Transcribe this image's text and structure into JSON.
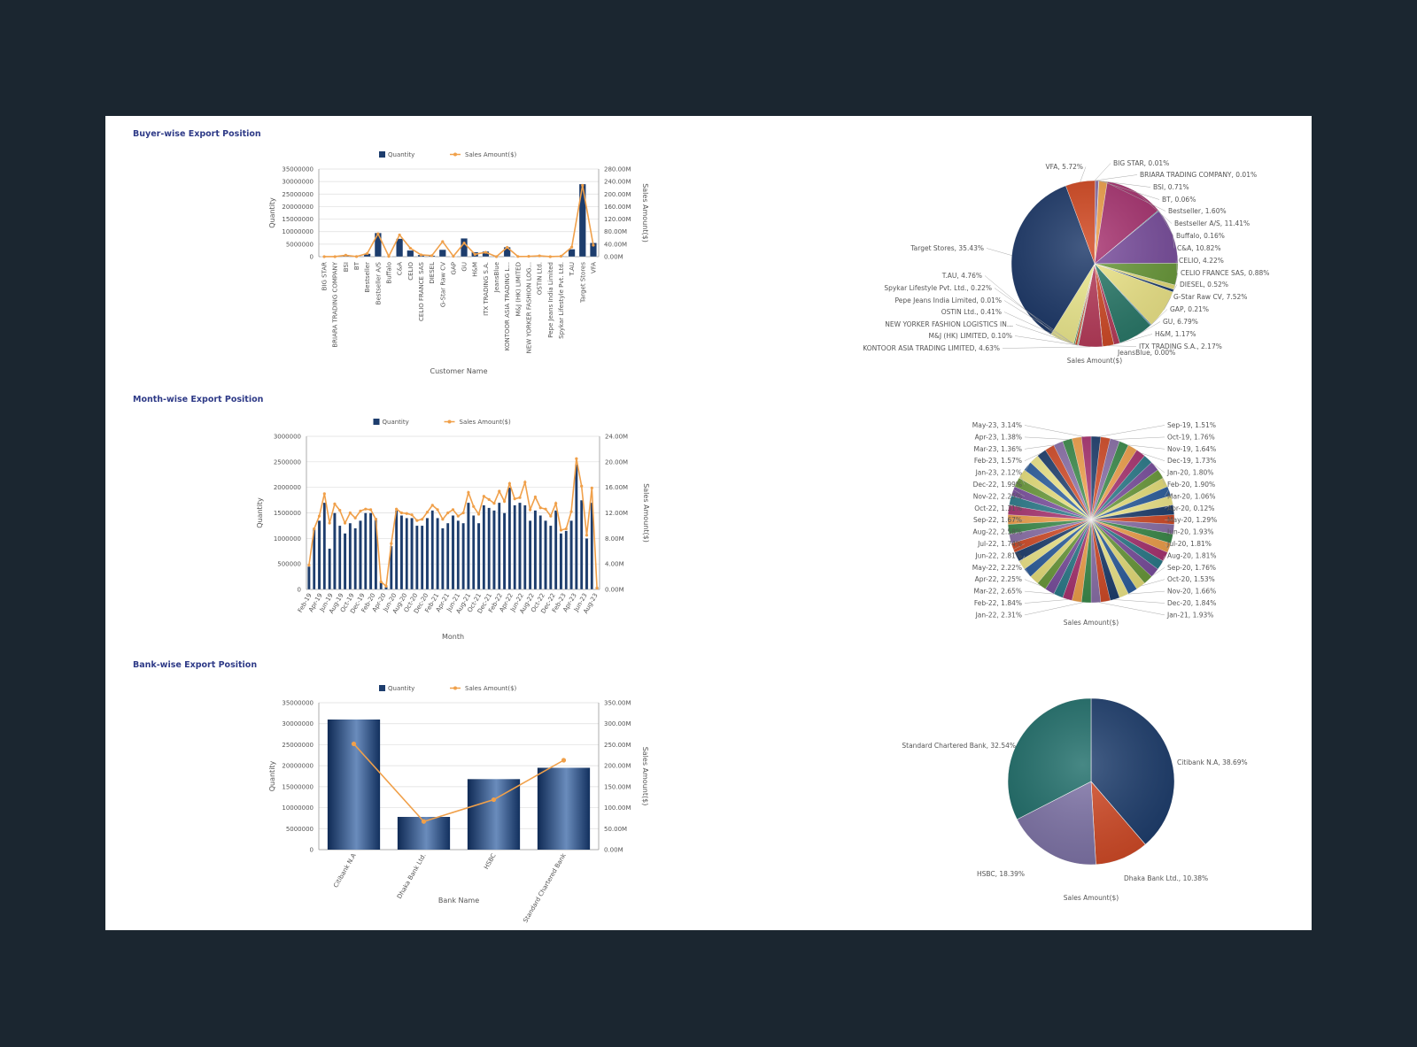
{
  "sections": [
    {
      "title": "Buyer-wise Export Position"
    },
    {
      "title": "Month-wise Export Position"
    },
    {
      "title": "Bank-wise Export Position"
    }
  ],
  "legend": {
    "quantity": "Quantity",
    "sales": "Sales Amount($)"
  },
  "colors": {
    "bar": "#1d3d6d",
    "bar_light": "#6f8fb8",
    "line": "#f0a04a",
    "axis_text": "#555555",
    "grid": "#dddddd",
    "title": "#2e3a87"
  },
  "chart_data": [
    {
      "type": "bar",
      "title": "Buyer-wise Export Position",
      "xlabel": "Customer Name",
      "ylabel": "Quantity",
      "y2label": "Sales Amount($)",
      "ylim": [
        0,
        35000000
      ],
      "y2lim": [
        0,
        280
      ],
      "yticks": [
        "0",
        "5000000",
        "10000000",
        "15000000",
        "20000000",
        "25000000",
        "30000000",
        "35000000"
      ],
      "y2ticks": [
        "0.00M",
        "40.00M",
        "80.00M",
        "120.00M",
        "160.00M",
        "200.00M",
        "240.00M",
        "280.00M"
      ],
      "categories": [
        "BIG STAR",
        "BRIARA TRADING COMPANY",
        "BSI",
        "BT",
        "Bestseller",
        "Bestseller A/S",
        "Buffalo",
        "C&A",
        "CELIO",
        "CELIO FRANCE SAS",
        "DIESEL",
        "G-Star Raw CV",
        "GAP",
        "GU",
        "H&M",
        "ITX TRADING S.A.",
        "JeansBlue",
        "KONTOOR ASIA TRADING L...",
        "M&J (HK) LIMITED",
        "NEW YORKER FASHION LOG...",
        "OSTIN Ltd.",
        "Pepe Jeans India Limited",
        "Spykar Lifestyle Pvt. Ltd.",
        "T.AU",
        "Target Stores",
        "VFA"
      ],
      "series": [
        {
          "name": "Quantity",
          "type": "bar",
          "values": [
            50000,
            30000,
            600000,
            80000,
            1200000,
            9500000,
            150000,
            7200000,
            2500000,
            700000,
            400000,
            2800000,
            150000,
            7300000,
            1800000,
            2100000,
            0,
            3800000,
            100000,
            50000,
            400000,
            20000,
            200000,
            3000000,
            29000000,
            5500000
          ]
        },
        {
          "name": "Sales Amount($)",
          "type": "line",
          "values": [
            0.1,
            0.1,
            4.5,
            0.4,
            10.3,
            73.3,
            1.0,
            69.5,
            27.1,
            5.7,
            3.3,
            48.3,
            1.3,
            43.6,
            7.5,
            13.9,
            0,
            29.7,
            0.6,
            1.0,
            2.6,
            0.1,
            1.4,
            30.6,
            227.6,
            36.7
          ]
        }
      ]
    },
    {
      "type": "pie",
      "title": "Buyer-wise Export Position",
      "xlabel": "Sales Amount($)",
      "labels": [
        "BIG STAR, 0.01%",
        "BRIARA TRADING COMPANY, 0.01%",
        "BSI, 0.71%",
        "BT, 0.06%",
        "Bestseller, 1.60%",
        "Bestseller A/S, 11.41%",
        "Buffalo, 0.16%",
        "C&A, 10.82%",
        "CELIO, 4.22%",
        "CELIO FRANCE SAS, 0.88%",
        "DIESEL, 0.52%",
        "G-Star Raw CV, 7.52%",
        "GAP, 0.21%",
        "GU, 6.79%",
        "H&M, 1.17%",
        "ITX TRADING S.A., 2.17%",
        "JeansBlue, 0.00%",
        "KONTOOR ASIA TRADING LIMITED, 4.63%",
        "M&J (HK) LIMITED, 0.10%",
        "NEW YORKER FASHION LOGISTICS IN...",
        "OSTIN Ltd., 0.41%",
        "Pepe Jeans India Limited, 0.01%",
        "Spykar Lifestyle Pvt. Ltd., 0.22%",
        "T.AU, 4.76%",
        "Target Stores, 35.43%",
        "VFA, 5.72%"
      ],
      "values": [
        0.01,
        0.01,
        0.71,
        0.06,
        1.6,
        11.41,
        0.16,
        10.82,
        4.22,
        0.88,
        0.52,
        7.52,
        0.21,
        6.79,
        1.17,
        2.17,
        0.0,
        4.63,
        0.1,
        0.16,
        0.41,
        0.01,
        0.22,
        4.76,
        35.43,
        5.72
      ],
      "colors": [
        "#1d3d6d",
        "#d24a26",
        "#8a6fa8",
        "#3a8a4a",
        "#f0a04a",
        "#a83270",
        "#2a7a8a",
        "#7a4e9e",
        "#6a9a3a",
        "#e8e07a",
        "#1d3d6d",
        "#f0e88a",
        "#3a7aa8",
        "#2a7a6a",
        "#b83b5a",
        "#d24a26",
        "#e0e080",
        "#b83b5a",
        "#2a6a7a",
        "#4a7a3a",
        "#d24a26",
        "#6a6aa0",
        "#3a8a4a",
        "#f0ec90",
        "#1b3768",
        "#d2461e"
      ]
    },
    {
      "type": "bar",
      "title": "Month-wise Export Position",
      "xlabel": "Month",
      "ylabel": "Quantity",
      "y2label": "Sales Amount($)",
      "ylim": [
        0,
        3000000
      ],
      "y2lim": [
        0,
        24
      ],
      "yticks": [
        "0",
        "500000",
        "1000000",
        "1500000",
        "2000000",
        "2500000",
        "3000000"
      ],
      "y2ticks": [
        "0.00M",
        "4.00M",
        "8.00M",
        "12.00M",
        "16.00M",
        "20.00M",
        "24.00M"
      ],
      "tick_labels": [
        "Feb-19",
        "Apr-19",
        "Jun-19",
        "Aug-19",
        "Oct-19",
        "Dec-19",
        "Feb-20",
        "Apr-20",
        "Jun-20",
        "Aug-20",
        "Oct-20",
        "Dec-20",
        "Feb-21",
        "Apr-21",
        "Jun-21",
        "Aug-21",
        "Oct-21",
        "Dec-21",
        "Feb-22",
        "Apr-22",
        "Jun-22",
        "Aug-22",
        "Oct-22",
        "Dec-22",
        "Feb-23",
        "Apr-23",
        "Jun-23",
        "Aug-23"
      ],
      "series": [
        {
          "name": "Quantity",
          "type": "bar",
          "values": [
            450000,
            1200000,
            1350000,
            1700000,
            800000,
            1500000,
            1250000,
            1100000,
            1300000,
            1200000,
            1350000,
            1500000,
            1500000,
            1400000,
            150000,
            50000,
            850000,
            1550000,
            1450000,
            1400000,
            1400000,
            1250000,
            1250000,
            1400000,
            1550000,
            1400000,
            1200000,
            1300000,
            1450000,
            1350000,
            1300000,
            1700000,
            1450000,
            1300000,
            1650000,
            1600000,
            1550000,
            1700000,
            1500000,
            2000000,
            1650000,
            1700000,
            1650000,
            1350000,
            1550000,
            1450000,
            1350000,
            1250000,
            1550000,
            1100000,
            1150000,
            1350000,
            2450000,
            1750000,
            1000000,
            1700000,
            50000
          ]
        },
        {
          "name": "Sales Amount($)",
          "type": "line",
          "values": [
            3.8,
            9.5,
            11.5,
            15.0,
            10.4,
            13.4,
            12.4,
            10.4,
            12.0,
            11.2,
            12.3,
            12.6,
            12.5,
            11.0,
            1.2,
            0.5,
            7.2,
            12.6,
            12.0,
            11.9,
            11.7,
            10.8,
            11.0,
            12.1,
            13.2,
            12.5,
            11.0,
            12.0,
            12.5,
            11.5,
            12.0,
            15.2,
            13.0,
            11.8,
            14.6,
            14.1,
            13.5,
            15.4,
            13.8,
            16.6,
            14.2,
            14.4,
            16.8,
            12.5,
            14.5,
            12.8,
            12.6,
            11.5,
            13.5,
            9.3,
            9.5,
            12.2,
            20.5,
            16.2,
            8.5,
            15.9,
            0.2
          ]
        }
      ]
    },
    {
      "type": "pie",
      "title": "Month-wise Export Position",
      "xlabel": "Sales Amount($)",
      "labels_right": [
        "Sep-19, 1.51%",
        "Oct-19, 1.76%",
        "Nov-19, 1.64%",
        "Dec-19, 1.73%",
        "Jan-20, 1.80%",
        "Feb-20, 1.90%",
        "Mar-20, 1.06%",
        "Apr-20, 0.12%",
        "May-20, 1.29%",
        "Jun-20, 1.93%",
        "Jul-20, 1.81%",
        "Aug-20, 1.81%",
        "Sep-20, 1.76%",
        "Oct-20, 1.53%",
        "Nov-20, 1.66%",
        "Dec-20, 1.84%",
        "Jan-21, 1.93%"
      ],
      "labels_left": [
        "May-23, 3.14%",
        "Apr-23, 1.38%",
        "Mar-23, 1.36%",
        "Feb-23, 1.57%",
        "Jan-23, 2.12%",
        "Dec-22, 1.99%",
        "Nov-22, 2.25%",
        "Oct-22, 1.31%",
        "Sep-22, 1.67%",
        "Aug-22, 2.58%",
        "Jul-22, 1.74%",
        "Jun-22, 2.81%",
        "May-22, 2.22%",
        "Apr-22, 2.25%",
        "Mar-22, 2.65%",
        "Feb-22, 1.84%",
        "Jan-22, 2.31%"
      ],
      "slice_count": 54,
      "colors": [
        "#1d3d6d",
        "#d24a26",
        "#8a6fa8",
        "#3a8a4a",
        "#f0a04a",
        "#a83270",
        "#2a7a8a",
        "#7a4e9e",
        "#6a9a3a",
        "#e8e07a",
        "#2c5e9e",
        "#f0e88a"
      ]
    },
    {
      "type": "bar",
      "title": "Bank-wise Export Position",
      "xlabel": "Bank Name",
      "ylabel": "Quantity",
      "y2label": "Sales Amount($)",
      "ylim": [
        0,
        35000000
      ],
      "y2lim": [
        0,
        350
      ],
      "yticks": [
        "0",
        "5000000",
        "10000000",
        "15000000",
        "20000000",
        "25000000",
        "30000000",
        "35000000"
      ],
      "y2ticks": [
        "0.00M",
        "50.00M",
        "100.00M",
        "150.00M",
        "200.00M",
        "250.00M",
        "300.00M",
        "350.00M"
      ],
      "categories": [
        "Citibank N.A",
        "Dhaka Bank Ltd.",
        "HSBC",
        "Standard Chartered Bank"
      ],
      "series": [
        {
          "name": "Quantity",
          "type": "bar",
          "values": [
            31000000,
            7800000,
            16800000,
            19500000
          ]
        },
        {
          "name": "Sales Amount($)",
          "type": "line",
          "values": [
            252,
            67,
            119,
            213
          ]
        }
      ]
    },
    {
      "type": "pie",
      "title": "Bank-wise Export Position",
      "xlabel": "Sales Amount($)",
      "labels": [
        "Citibank N.A, 38.69%",
        "Dhaka Bank Ltd., 10.38%",
        "HSBC, 18.39%",
        "Standard Chartered Bank, 32.54%"
      ],
      "values": [
        38.69,
        10.38,
        18.39,
        32.54
      ],
      "colors": [
        "#1d3d6d",
        "#d24a26",
        "#7f74a8",
        "#1f6e6a"
      ]
    }
  ]
}
